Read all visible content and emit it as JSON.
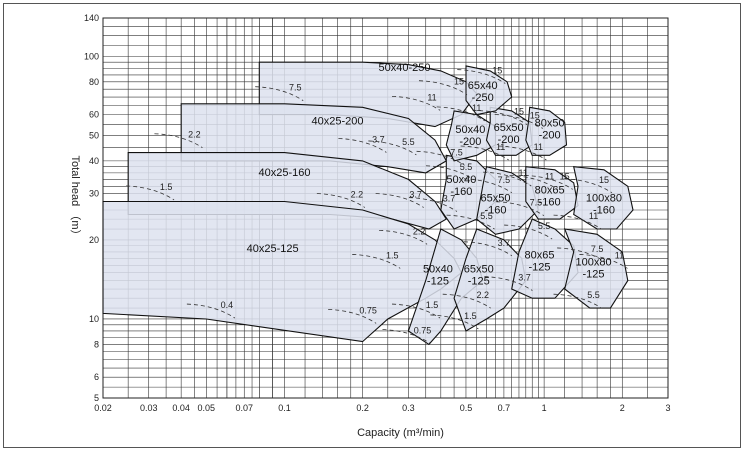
{
  "chart_data": {
    "type": "area",
    "title": "",
    "xlabel": "Capacity (m³/min)",
    "ylabel": "Total head （m）",
    "x_scale": "log",
    "y_scale": "log",
    "xlim": [
      0.02,
      3
    ],
    "ylim": [
      5,
      140
    ],
    "grid": true,
    "x_ticks": [
      0.02,
      0.03,
      0.04,
      0.05,
      0.07,
      0.1,
      0.2,
      0.3,
      0.5,
      0.7,
      1,
      2,
      3
    ],
    "x_tick_labels": [
      "0.02",
      "0.03",
      "0.04",
      "0.05",
      "0.07",
      "0.1",
      "0.2",
      "0.3",
      "0.5",
      "0.7",
      "1",
      "2",
      "3"
    ],
    "y_ticks": [
      5,
      6,
      8,
      10,
      20,
      30,
      40,
      50,
      60,
      80,
      100,
      140
    ],
    "y_tick_labels": [
      "5",
      "6",
      "8",
      "10",
      "20",
      "30",
      "40",
      "50",
      "60",
      "80",
      "100",
      "140"
    ],
    "fill_color": "#dde2ef",
    "series": [
      {
        "name": "50x40-250",
        "label_lines": [
          "50x40-250"
        ],
        "label_at": [
          0.29,
          88
        ],
        "region": [
          [
            0.08,
            95
          ],
          [
            0.2,
            95
          ],
          [
            0.3,
            93
          ],
          [
            0.4,
            88
          ],
          [
            0.5,
            80
          ],
          [
            0.55,
            72
          ],
          [
            0.48,
            60
          ],
          [
            0.38,
            54
          ],
          [
            0.25,
            58
          ],
          [
            0.15,
            60
          ],
          [
            0.08,
            60
          ]
        ],
        "motor_kw": [
          {
            "text": "7.5",
            "at": [
              0.11,
              74
            ]
          },
          {
            "text": "11",
            "at": [
              0.37,
              68
            ]
          },
          {
            "text": "15",
            "at": [
              0.47,
              78
            ]
          }
        ]
      },
      {
        "name": "40x25-200",
        "label_lines": [
          "40x25-200"
        ],
        "label_at": [
          0.16,
          55
        ],
        "region": [
          [
            0.04,
            66
          ],
          [
            0.1,
            66
          ],
          [
            0.2,
            64
          ],
          [
            0.3,
            58
          ],
          [
            0.38,
            48
          ],
          [
            0.42,
            40
          ],
          [
            0.35,
            36
          ],
          [
            0.25,
            38
          ],
          [
            0.15,
            40
          ],
          [
            0.04,
            40
          ]
        ],
        "motor_kw": [
          {
            "text": "2.2",
            "at": [
              0.045,
              49
            ]
          },
          {
            "text": "3.7",
            "at": [
              0.23,
              47
            ]
          },
          {
            "text": "5.5",
            "at": [
              0.3,
              46
            ]
          }
        ]
      },
      {
        "name": "40x25-160",
        "label_lines": [
          "40x25-160"
        ],
        "label_at": [
          0.1,
          35
        ],
        "region": [
          [
            0.025,
            43
          ],
          [
            0.1,
            43
          ],
          [
            0.2,
            40
          ],
          [
            0.3,
            34
          ],
          [
            0.38,
            28
          ],
          [
            0.42,
            24
          ],
          [
            0.36,
            22
          ],
          [
            0.26,
            24
          ],
          [
            0.15,
            25
          ],
          [
            0.025,
            25
          ]
        ],
        "motor_kw": [
          {
            "text": "1.5",
            "at": [
              0.035,
              31
            ]
          },
          {
            "text": "2.2",
            "at": [
              0.19,
              29
            ]
          },
          {
            "text": "3.7",
            "at": [
              0.32,
              29
            ]
          }
        ]
      },
      {
        "name": "40x25-125",
        "label_lines": [
          "40x25-125"
        ],
        "label_at": [
          0.09,
          18
        ],
        "region": [
          [
            0.02,
            28
          ],
          [
            0.1,
            28
          ],
          [
            0.2,
            26
          ],
          [
            0.3,
            23
          ],
          [
            0.38,
            20
          ],
          [
            0.45,
            17
          ],
          [
            0.48,
            15
          ],
          [
            0.4,
            13
          ],
          [
            0.35,
            12
          ],
          [
            0.25,
            10
          ],
          [
            0.2,
            8.2
          ],
          [
            0.05,
            10
          ],
          [
            0.02,
            10.5
          ]
        ],
        "motor_kw": [
          {
            "text": "0.4",
            "at": [
              0.06,
              11
            ]
          },
          {
            "text": "0.75",
            "at": [
              0.21,
              10.5
            ]
          },
          {
            "text": "1.5",
            "at": [
              0.26,
              17
            ]
          },
          {
            "text": "2.2",
            "at": [
              0.33,
              21
            ]
          }
        ]
      },
      {
        "name": "50x40-125",
        "label_lines": [
          "50x40",
          "-125"
        ],
        "label_at": [
          0.39,
          15
        ],
        "region": [
          [
            0.4,
            22
          ],
          [
            0.48,
            20
          ],
          [
            0.55,
            17
          ],
          [
            0.58,
            14
          ],
          [
            0.48,
            12
          ],
          [
            0.4,
            9
          ],
          [
            0.36,
            8
          ],
          [
            0.3,
            9
          ],
          [
            0.35,
            14
          ]
        ],
        "motor_kw": [
          {
            "text": "0.75",
            "at": [
              0.34,
              8.8
            ]
          },
          {
            "text": "1.5",
            "at": [
              0.37,
              11
            ]
          }
        ]
      },
      {
        "name": "65x50-125",
        "label_lines": [
          "65x50",
          "-125"
        ],
        "label_at": [
          0.56,
          15
        ],
        "region": [
          [
            0.55,
            22
          ],
          [
            0.7,
            20
          ],
          [
            0.82,
            17
          ],
          [
            0.85,
            14
          ],
          [
            0.7,
            11
          ],
          [
            0.6,
            10
          ],
          [
            0.5,
            9
          ],
          [
            0.45,
            12
          ],
          [
            0.5,
            17
          ]
        ],
        "motor_kw": [
          {
            "text": "1.5",
            "at": [
              0.52,
              10
            ]
          },
          {
            "text": "2.2",
            "at": [
              0.58,
              12
            ]
          },
          {
            "text": "3.7",
            "at": [
              0.7,
              19
            ]
          }
        ]
      },
      {
        "name": "80x65-125",
        "label_lines": [
          "80x65",
          "-125"
        ],
        "label_at": [
          0.96,
          17
        ],
        "region": [
          [
            0.9,
            24
          ],
          [
            1.1,
            22
          ],
          [
            1.3,
            19
          ],
          [
            1.35,
            15
          ],
          [
            1.1,
            12
          ],
          [
            0.9,
            12
          ],
          [
            0.75,
            13
          ],
          [
            0.8,
            18
          ]
        ],
        "motor_kw": [
          {
            "text": "3.7",
            "at": [
              0.84,
              14
            ]
          },
          {
            "text": "5.5",
            "at": [
              1.0,
              22
            ]
          }
        ]
      },
      {
        "name": "100x80-125",
        "label_lines": [
          "100x80",
          "-125"
        ],
        "label_at": [
          1.55,
          16
        ],
        "region": [
          [
            1.2,
            22
          ],
          [
            1.6,
            21
          ],
          [
            2.0,
            18
          ],
          [
            2.1,
            14
          ],
          [
            1.8,
            11
          ],
          [
            1.5,
            11
          ],
          [
            1.2,
            13
          ],
          [
            1.3,
            18
          ]
        ],
        "motor_kw": [
          {
            "text": "5.5",
            "at": [
              1.55,
              12
            ]
          },
          {
            "text": "7.5",
            "at": [
              1.6,
              18
            ]
          },
          {
            "text": "11",
            "at": [
              1.95,
              17
            ]
          }
        ]
      },
      {
        "name": "50x40-160",
        "label_lines": [
          "50x40",
          "-160"
        ],
        "label_at": [
          0.48,
          33
        ],
        "region": [
          [
            0.42,
            42
          ],
          [
            0.55,
            40
          ],
          [
            0.65,
            34
          ],
          [
            0.65,
            28
          ],
          [
            0.55,
            24
          ],
          [
            0.45,
            22
          ],
          [
            0.4,
            26
          ],
          [
            0.42,
            34
          ]
        ],
        "motor_kw": [
          {
            "text": "3.7",
            "at": [
              0.43,
              28
            ]
          },
          {
            "text": "5.5",
            "at": [
              0.5,
              37
            ]
          }
        ]
      },
      {
        "name": "65x50-160",
        "label_lines": [
          "65x50",
          "-160"
        ],
        "label_at": [
          0.65,
          28
        ],
        "region": [
          [
            0.6,
            38
          ],
          [
            0.75,
            36
          ],
          [
            0.9,
            32
          ],
          [
            0.95,
            26
          ],
          [
            0.8,
            22
          ],
          [
            0.65,
            21
          ],
          [
            0.55,
            24
          ],
          [
            0.58,
            32
          ]
        ],
        "motor_kw": [
          {
            "text": "5.5",
            "at": [
              0.6,
              24
            ]
          },
          {
            "text": "7.5",
            "at": [
              0.7,
              33
            ]
          },
          {
            "text": "11",
            "at": [
              0.83,
              35
            ]
          }
        ]
      },
      {
        "name": "80x65-160",
        "label_lines": [
          "80x65",
          "-160"
        ],
        "label_at": [
          1.05,
          30
        ],
        "region": [
          [
            0.85,
            38
          ],
          [
            1.1,
            37
          ],
          [
            1.3,
            33
          ],
          [
            1.35,
            27
          ],
          [
            1.15,
            24
          ],
          [
            0.95,
            24
          ],
          [
            0.85,
            28
          ]
        ],
        "motor_kw": [
          {
            "text": "7.5",
            "at": [
              0.93,
              27
            ]
          },
          {
            "text": "11",
            "at": [
              1.05,
              34
            ]
          },
          {
            "text": "15",
            "at": [
              1.2,
              34
            ]
          }
        ]
      },
      {
        "name": "100x80-160",
        "label_lines": [
          "100x80",
          "-160"
        ],
        "label_at": [
          1.7,
          28
        ],
        "region": [
          [
            1.3,
            38
          ],
          [
            1.7,
            37
          ],
          [
            2.1,
            32
          ],
          [
            2.2,
            26
          ],
          [
            1.9,
            22
          ],
          [
            1.6,
            22
          ],
          [
            1.3,
            25
          ],
          [
            1.35,
            32
          ]
        ],
        "motor_kw": [
          {
            "text": "11",
            "at": [
              1.55,
              24
            ]
          },
          {
            "text": "15",
            "at": [
              1.7,
              33
            ]
          }
        ]
      },
      {
        "name": "50x40-200",
        "label_lines": [
          "50x40",
          "-200"
        ],
        "label_at": [
          0.52,
          51
        ],
        "region": [
          [
            0.45,
            62
          ],
          [
            0.55,
            60
          ],
          [
            0.65,
            54
          ],
          [
            0.65,
            46
          ],
          [
            0.55,
            42
          ],
          [
            0.45,
            40
          ],
          [
            0.42,
            46
          ],
          [
            0.44,
            55
          ]
        ],
        "motor_kw": [
          {
            "text": "7.5",
            "at": [
              0.46,
              42
            ]
          }
        ]
      },
      {
        "name": "65x50-200",
        "label_lines": [
          "65x50",
          "-200"
        ],
        "label_at": [
          0.73,
          52
        ],
        "region": [
          [
            0.62,
            64
          ],
          [
            0.75,
            62
          ],
          [
            0.88,
            56
          ],
          [
            0.9,
            46
          ],
          [
            0.78,
            42
          ],
          [
            0.65,
            42
          ],
          [
            0.6,
            48
          ],
          [
            0.62,
            56
          ]
        ],
        "motor_kw": [
          {
            "text": "11",
            "at": [
              0.68,
              44
            ]
          },
          {
            "text": "15",
            "at": [
              0.8,
              60
            ]
          }
        ]
      },
      {
        "name": "65x40-250",
        "label_lines": [
          "65x40",
          "-250"
        ],
        "label_at": [
          0.58,
          75
        ],
        "region": [
          [
            0.5,
            92
          ],
          [
            0.62,
            88
          ],
          [
            0.72,
            80
          ],
          [
            0.75,
            70
          ],
          [
            0.65,
            62
          ],
          [
            0.55,
            60
          ],
          [
            0.5,
            68
          ],
          [
            0.5,
            80
          ]
        ],
        "motor_kw": [
          {
            "text": "11",
            "at": [
              0.55,
              62
            ]
          },
          {
            "text": "15",
            "at": [
              0.66,
              86
            ]
          }
        ]
      },
      {
        "name": "80x50-200",
        "label_lines": [
          "80x50",
          "-200"
        ],
        "label_at": [
          1.05,
          54
        ],
        "region": [
          [
            0.88,
            64
          ],
          [
            1.05,
            62
          ],
          [
            1.2,
            56
          ],
          [
            1.22,
            46
          ],
          [
            1.05,
            42
          ],
          [
            0.9,
            42
          ],
          [
            0.85,
            48
          ],
          [
            0.87,
            56
          ]
        ],
        "motor_kw": [
          {
            "text": "15",
            "at": [
              0.92,
              58
            ]
          },
          {
            "text": "11",
            "at": [
              0.95,
              44
            ]
          }
        ]
      }
    ]
  }
}
